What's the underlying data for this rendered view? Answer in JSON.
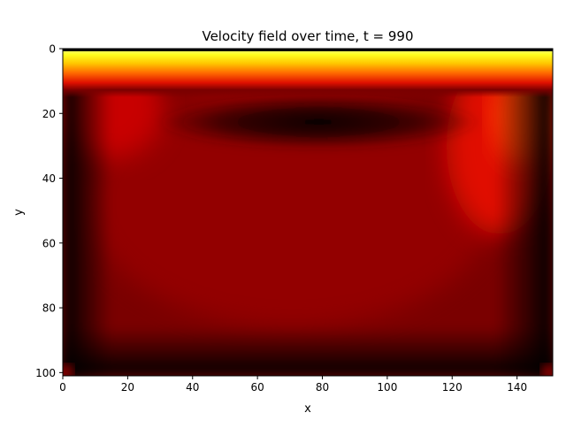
{
  "chart_data": {
    "type": "heatmap",
    "title": "Velocity field over time, t = 990",
    "xlabel": "x",
    "ylabel": "y",
    "x_ticks": [
      0,
      20,
      40,
      60,
      80,
      100,
      120,
      140
    ],
    "y_ticks": [
      0,
      20,
      40,
      60,
      80,
      100
    ],
    "xlim": [
      0,
      151
    ],
    "ylim": [
      101,
      0
    ],
    "y_inverted": true,
    "colormap": "hot",
    "grid": false,
    "legend": "none",
    "field_description": "lid-driven cavity: bright yellow band along top row, dark vortex core near y=23, red recirculation toward bottom"
  },
  "colors": {
    "background": "#ffffff",
    "axis": "#000000"
  }
}
